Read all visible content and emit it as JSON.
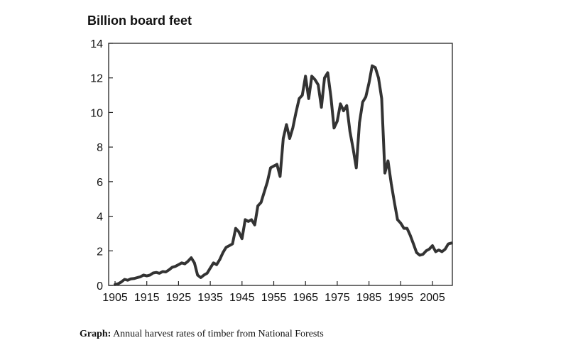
{
  "chart_data": {
    "type": "line",
    "title": "Billion board feet",
    "xlabel": "",
    "ylabel": "Billion board feet",
    "xlim": [
      1905,
      2012
    ],
    "ylim": [
      0,
      14
    ],
    "x_ticks": [
      1905,
      1915,
      1925,
      1935,
      1945,
      1955,
      1965,
      1975,
      1985,
      1995,
      2005
    ],
    "y_ticks": [
      0,
      2,
      4,
      6,
      8,
      10,
      12,
      14
    ],
    "grid": false,
    "legend": "none",
    "line_color": "#333333",
    "series": [
      {
        "x": [
          1905,
          1906,
          1907,
          1908,
          1909,
          1910,
          1911,
          1912,
          1913,
          1914,
          1915,
          1916,
          1917,
          1918,
          1919,
          1920,
          1921,
          1922,
          1923,
          1924,
          1925,
          1926,
          1927,
          1928,
          1929,
          1930,
          1931,
          1932,
          1933,
          1934,
          1935,
          1936,
          1937,
          1938,
          1939,
          1940,
          1941,
          1942,
          1943,
          1944,
          1945,
          1946,
          1947,
          1948,
          1949,
          1950,
          1951,
          1952,
          1953,
          1954,
          1955,
          1956,
          1957,
          1958,
          1959,
          1960,
          1961,
          1962,
          1963,
          1964,
          1965,
          1966,
          1967,
          1968,
          1969,
          1970,
          1971,
          1972,
          1973,
          1974,
          1975,
          1976,
          1977,
          1978,
          1979,
          1980,
          1981,
          1982,
          1983,
          1984,
          1985,
          1986,
          1987,
          1988,
          1989,
          1990,
          1991,
          1992,
          1993,
          1994,
          1995,
          1996,
          1997,
          1998,
          1999,
          2000,
          2001,
          2002,
          2003,
          2004,
          2005,
          2006,
          2007,
          2008,
          2009,
          2010,
          2011
        ],
        "values": [
          0.05,
          0.1,
          0.2,
          0.35,
          0.3,
          0.38,
          0.4,
          0.45,
          0.5,
          0.6,
          0.55,
          0.6,
          0.72,
          0.75,
          0.7,
          0.8,
          0.78,
          0.9,
          1.05,
          1.1,
          1.2,
          1.3,
          1.25,
          1.4,
          1.6,
          1.3,
          0.6,
          0.45,
          0.6,
          0.7,
          1.0,
          1.3,
          1.2,
          1.5,
          1.9,
          2.2,
          2.3,
          2.4,
          3.3,
          3.1,
          2.7,
          3.8,
          3.7,
          3.8,
          3.5,
          4.6,
          4.8,
          5.4,
          6.0,
          6.8,
          6.9,
          7.0,
          6.3,
          8.5,
          9.3,
          8.5,
          9.1,
          10.0,
          10.8,
          11.0,
          12.1,
          10.8,
          12.1,
          11.9,
          11.6,
          10.3,
          12.0,
          12.3,
          10.9,
          9.1,
          9.5,
          10.5,
          10.1,
          10.4,
          8.9,
          7.9,
          6.8,
          9.4,
          10.6,
          10.9,
          11.7,
          12.7,
          12.6,
          12.0,
          10.8,
          6.5,
          7.2,
          5.9,
          4.8,
          3.8,
          3.6,
          3.3,
          3.3,
          2.9,
          2.4,
          1.9,
          1.75,
          1.8,
          2.0,
          2.1,
          2.3,
          1.95,
          2.05,
          1.95,
          2.1,
          2.4,
          2.45
        ]
      }
    ]
  },
  "caption": {
    "bold": "Graph:",
    "text": " Annual harvest rates of timber from National Forests"
  }
}
